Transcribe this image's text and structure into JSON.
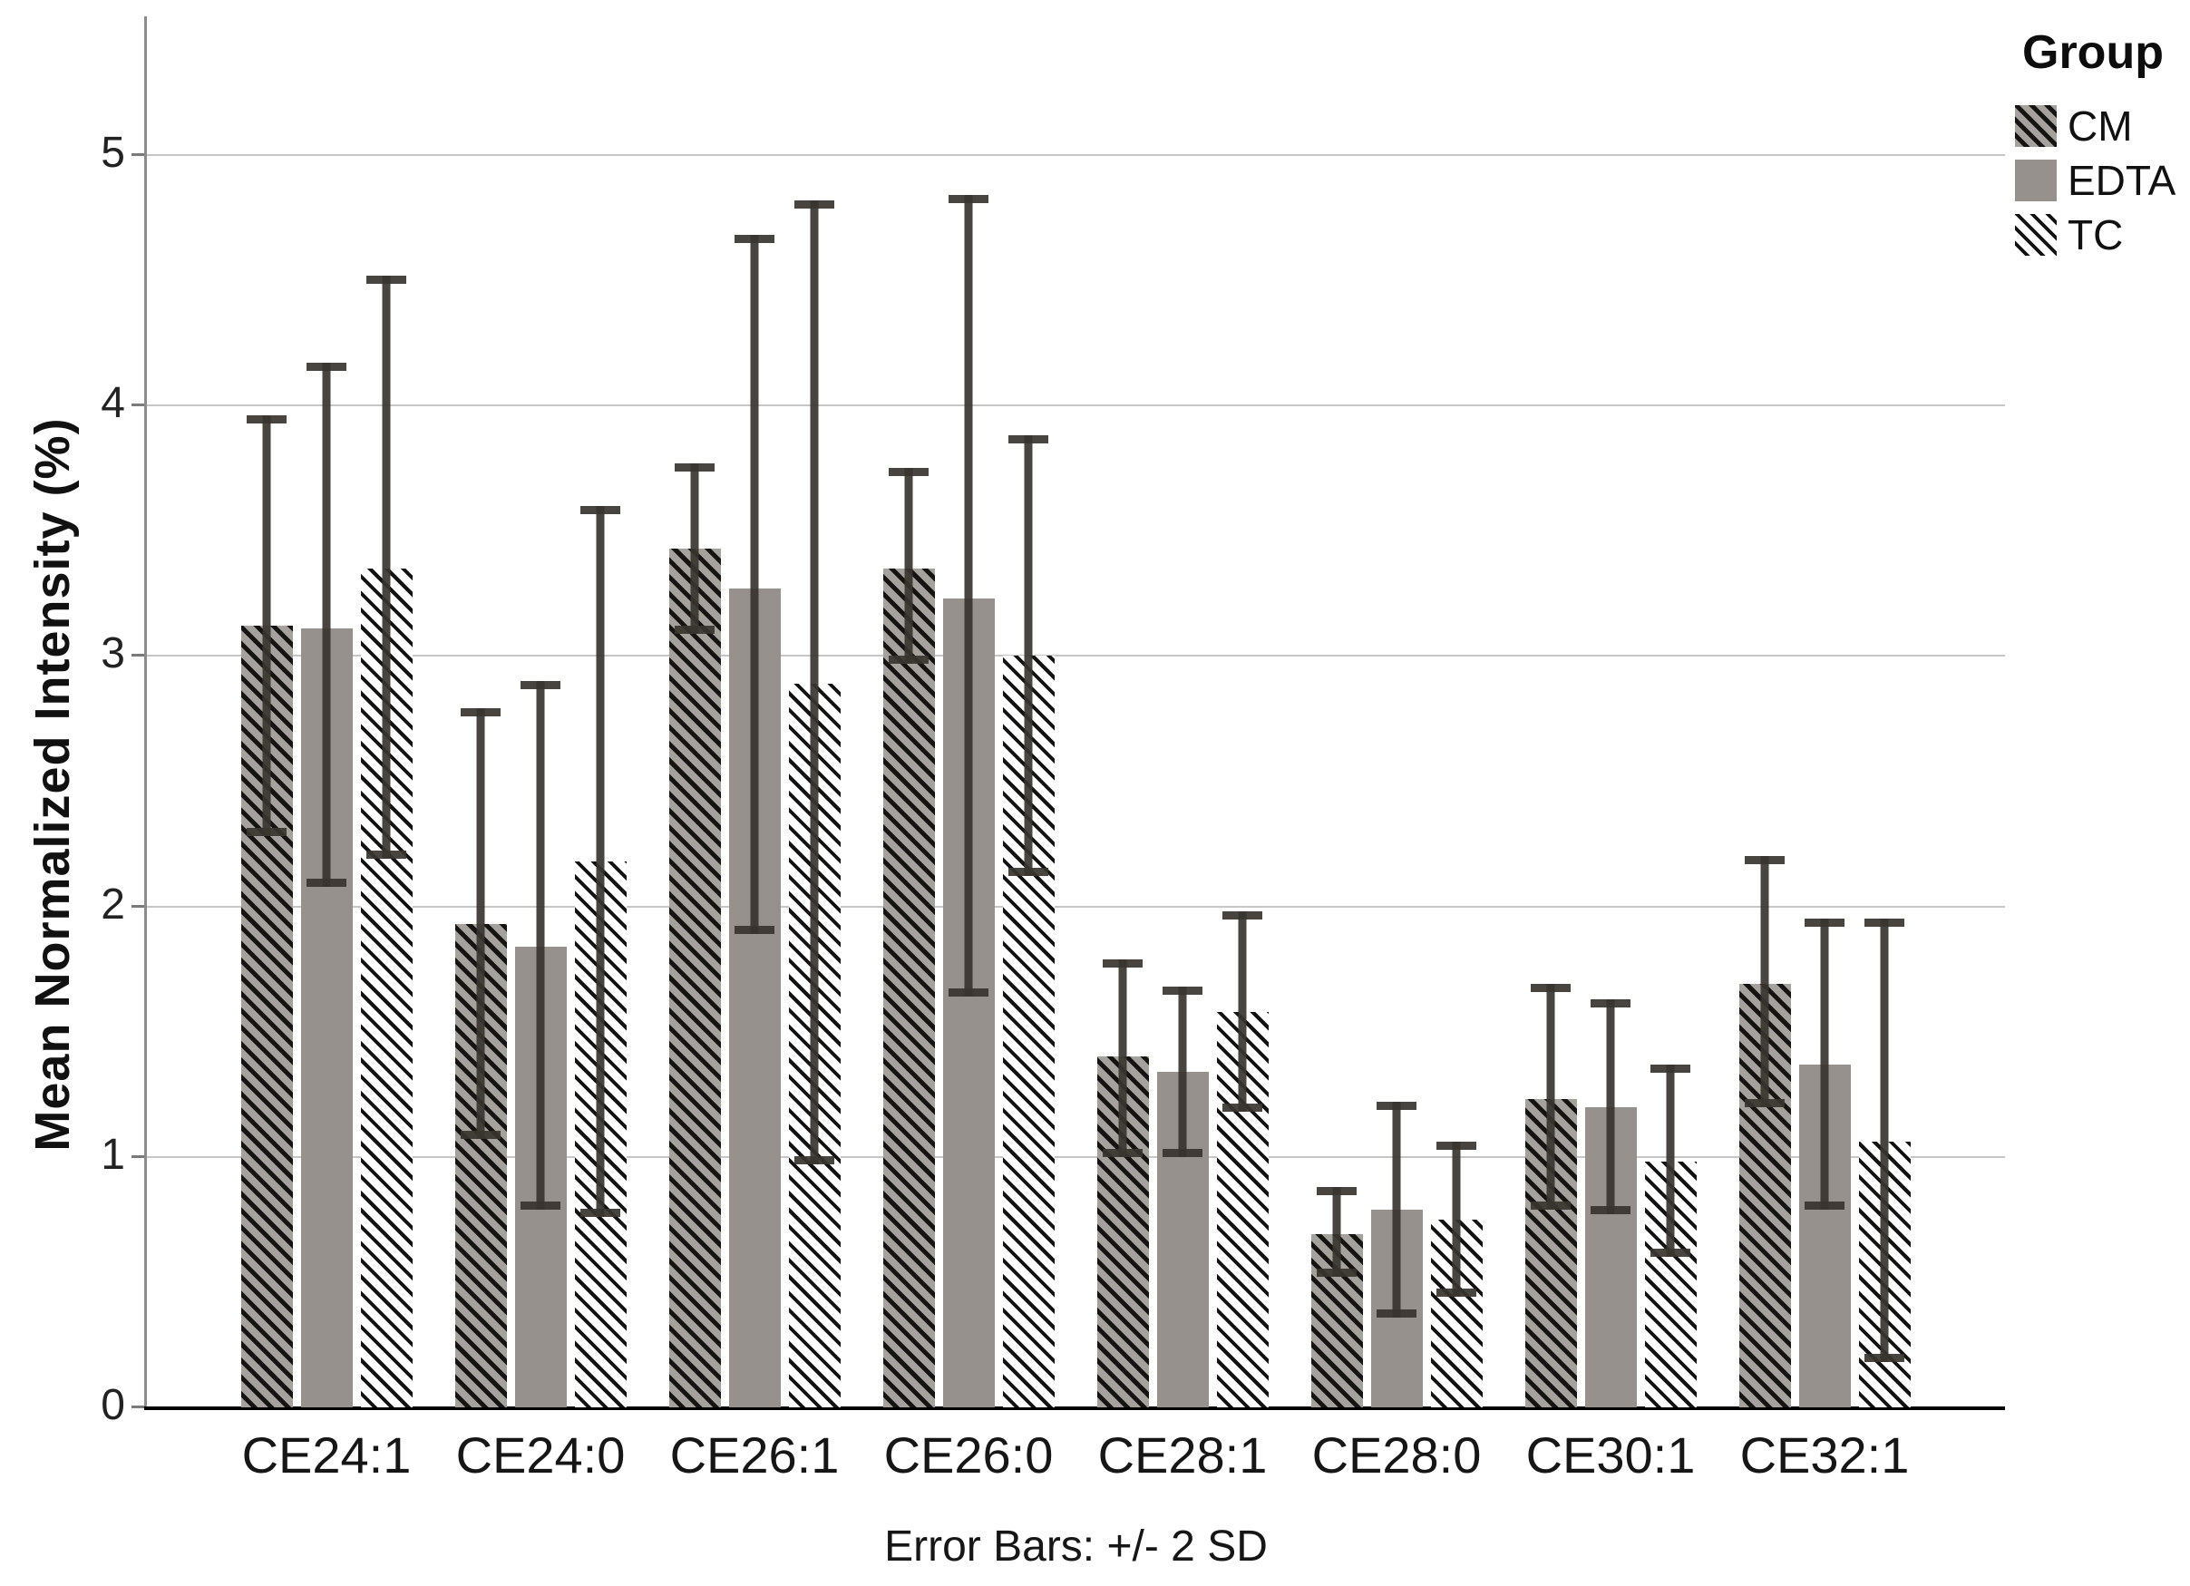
{
  "figure": {
    "y_axis_title": "Mean Normalized Intensity (%)",
    "caption": "Error Bars: +/- 2 SD",
    "legend_title": "Group"
  },
  "chart_data": {
    "type": "bar",
    "title": "",
    "xlabel": "",
    "ylabel": "Mean Normalized Intensity (%)",
    "categories": [
      "CE24:1",
      "CE24:0",
      "CE26:1",
      "CE26:0",
      "CE28:1",
      "CE28:0",
      "CE30:1",
      "CE32:1"
    ],
    "series": [
      {
        "name": "CM",
        "style": "cm",
        "values": [
          3.12,
          1.93,
          3.43,
          3.35,
          1.4,
          0.69,
          1.23,
          1.69
        ],
        "err_low": [
          2.28,
          1.07,
          3.09,
          2.97,
          1.0,
          0.52,
          0.79,
          1.2
        ],
        "err_high": [
          3.96,
          2.79,
          3.77,
          3.75,
          1.79,
          0.88,
          1.69,
          2.2
        ]
      },
      {
        "name": "EDTA",
        "style": "edta",
        "values": [
          3.11,
          1.84,
          3.27,
          3.23,
          1.34,
          0.79,
          1.2,
          1.37
        ],
        "err_low": [
          2.08,
          0.79,
          1.89,
          1.64,
          1.0,
          0.36,
          0.77,
          0.79
        ],
        "err_high": [
          4.17,
          2.9,
          4.68,
          4.84,
          1.68,
          1.22,
          1.63,
          1.95
        ]
      },
      {
        "name": "TC",
        "style": "tc",
        "values": [
          3.35,
          2.18,
          2.89,
          3.0,
          1.58,
          0.75,
          0.98,
          1.06
        ],
        "err_low": [
          2.19,
          0.76,
          0.97,
          2.12,
          1.18,
          0.44,
          0.6,
          0.18
        ],
        "err_high": [
          4.52,
          3.6,
          4.82,
          3.88,
          1.98,
          1.06,
          1.37,
          1.95
        ]
      }
    ],
    "yticks": [
      0,
      1,
      2,
      3,
      4,
      5
    ],
    "ylim": [
      0,
      5.55
    ],
    "grid": true,
    "legend_title": "Group",
    "legend_position": "top-right",
    "error_bars_note": "Error Bars: +/- 2 SD"
  },
  "colors": {
    "edta_fill": "#96918d",
    "cm_base": "#a5a19c",
    "hatch_stroke": "#141414",
    "error_bar": "#38342f",
    "gridline": "#c6c6c6",
    "y_axis_line": "#8c8c8c",
    "baseline": "#000000",
    "background": "#ffffff"
  }
}
